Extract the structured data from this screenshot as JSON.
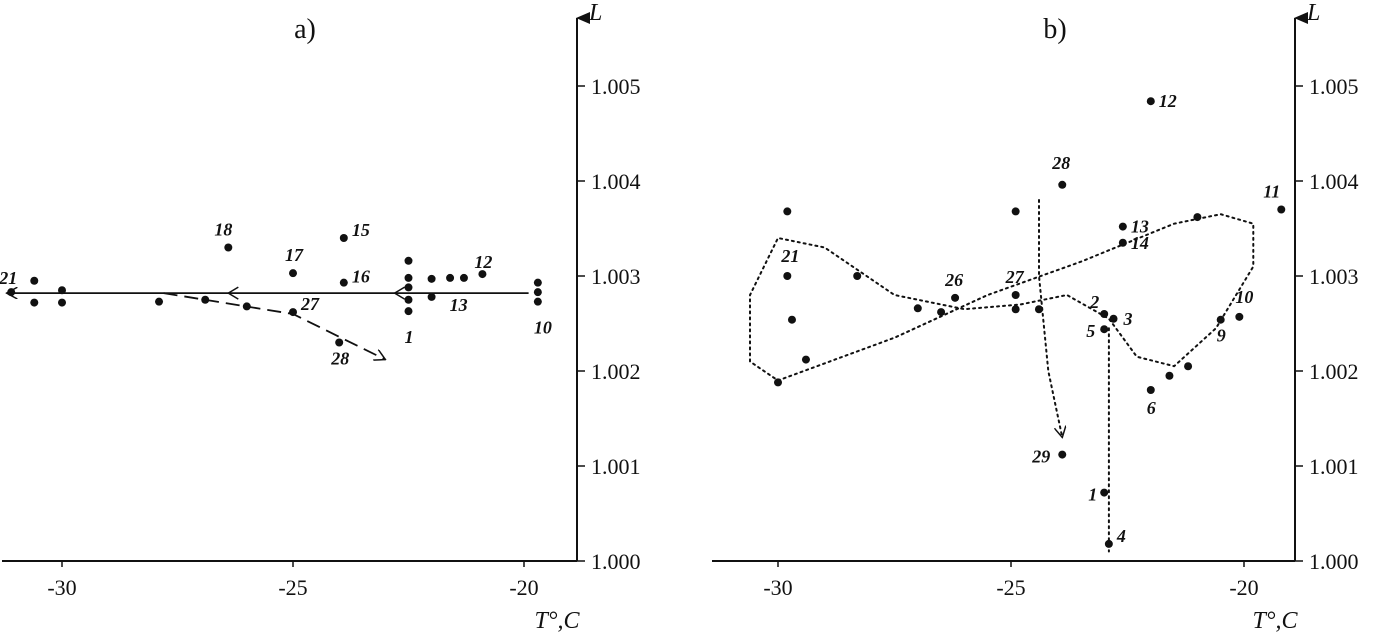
{
  "chart_data": [
    {
      "type": "scatter",
      "panel_label": "a)",
      "xlabel": "T°,C",
      "ylabel": "L",
      "xlim": [
        -31.2,
        -18.8
      ],
      "ylim": [
        1.0,
        1.0058
      ],
      "x_ticks": [
        -30,
        -25,
        -20
      ],
      "x_tick_labels": [
        "-30",
        "-25",
        "-20"
      ],
      "y_ticks": [
        1.0,
        1.001,
        1.002,
        1.003,
        1.004,
        1.005
      ],
      "y_tick_labels": [
        "1.000",
        "1.001",
        "1.002",
        "1.003",
        "1.004",
        "1.005"
      ],
      "points": [
        {
          "x": -31.1,
          "y": 1.00283,
          "label": "21"
        },
        {
          "x": -30.6,
          "y": 1.00295,
          "label": ""
        },
        {
          "x": -30.6,
          "y": 1.00272,
          "label": ""
        },
        {
          "x": -30.0,
          "y": 1.00285,
          "label": ""
        },
        {
          "x": -30.0,
          "y": 1.00272,
          "label": ""
        },
        {
          "x": -27.9,
          "y": 1.00273,
          "label": ""
        },
        {
          "x": -26.9,
          "y": 1.00275,
          "label": ""
        },
        {
          "x": -26.0,
          "y": 1.00268,
          "label": ""
        },
        {
          "x": -26.4,
          "y": 1.0033,
          "label": "18"
        },
        {
          "x": -25.0,
          "y": 1.00303,
          "label": "17"
        },
        {
          "x": -25.0,
          "y": 1.00262,
          "label": "27"
        },
        {
          "x": -23.9,
          "y": 1.0034,
          "label": "15"
        },
        {
          "x": -23.9,
          "y": 1.00293,
          "label": "16"
        },
        {
          "x": -24.0,
          "y": 1.0023,
          "label": "28"
        },
        {
          "x": -22.5,
          "y": 1.00316,
          "label": ""
        },
        {
          "x": -22.5,
          "y": 1.00298,
          "label": ""
        },
        {
          "x": -22.5,
          "y": 1.00288,
          "label": ""
        },
        {
          "x": -22.5,
          "y": 1.00275,
          "label": ""
        },
        {
          "x": -22.5,
          "y": 1.00263,
          "label": "1"
        },
        {
          "x": -22.0,
          "y": 1.00297,
          "label": ""
        },
        {
          "x": -22.0,
          "y": 1.00278,
          "label": "13"
        },
        {
          "x": -21.6,
          "y": 1.00298,
          "label": ""
        },
        {
          "x": -21.3,
          "y": 1.00298,
          "label": ""
        },
        {
          "x": -20.9,
          "y": 1.00302,
          "label": "12"
        },
        {
          "x": -19.7,
          "y": 1.00293,
          "label": ""
        },
        {
          "x": -19.7,
          "y": 1.00283,
          "label": ""
        },
        {
          "x": -19.7,
          "y": 1.00273,
          "label": "10"
        }
      ],
      "trajectories": [
        {
          "style": "solid",
          "path": [
            [
              -19.9,
              1.00282
            ],
            [
              -31.2,
              1.00282
            ]
          ]
        },
        {
          "style": "dashed",
          "path": [
            [
              -27.8,
              1.00282
            ],
            [
              -25.0,
              1.0026
            ],
            [
              -23.0,
              1.00212
            ]
          ]
        }
      ]
    },
    {
      "type": "scatter",
      "panel_label": "b)",
      "xlabel": "T°,C",
      "ylabel": "L",
      "xlim": [
        -31.2,
        -18.8
      ],
      "ylim": [
        1.0,
        1.0058
      ],
      "x_ticks": [
        -30,
        -25,
        -20
      ],
      "x_tick_labels": [
        "-30",
        "-25",
        "-20"
      ],
      "y_ticks": [
        1.0,
        1.001,
        1.002,
        1.003,
        1.004,
        1.005
      ],
      "y_tick_labels": [
        "1.000",
        "1.001",
        "1.002",
        "1.003",
        "1.004",
        "1.005"
      ],
      "points": [
        {
          "x": -22.0,
          "y": 1.00484,
          "label": "12"
        },
        {
          "x": -23.9,
          "y": 1.00396,
          "label": "28"
        },
        {
          "x": -19.2,
          "y": 1.0037,
          "label": "11"
        },
        {
          "x": -22.6,
          "y": 1.00352,
          "label": "13"
        },
        {
          "x": -22.6,
          "y": 1.00335,
          "label": "14"
        },
        {
          "x": -21.0,
          "y": 1.00362,
          "label": ""
        },
        {
          "x": -29.8,
          "y": 1.00368,
          "label": ""
        },
        {
          "x": -24.9,
          "y": 1.00368,
          "label": ""
        },
        {
          "x": -29.8,
          "y": 1.003,
          "label": "21"
        },
        {
          "x": -28.3,
          "y": 1.003,
          "label": ""
        },
        {
          "x": -29.7,
          "y": 1.00254,
          "label": ""
        },
        {
          "x": -29.4,
          "y": 1.00212,
          "label": ""
        },
        {
          "x": -30.0,
          "y": 1.00188,
          "label": ""
        },
        {
          "x": -26.2,
          "y": 1.00277,
          "label": "26"
        },
        {
          "x": -27.0,
          "y": 1.00266,
          "label": ""
        },
        {
          "x": -26.5,
          "y": 1.00262,
          "label": ""
        },
        {
          "x": -24.9,
          "y": 1.0028,
          "label": "27"
        },
        {
          "x": -24.9,
          "y": 1.00265,
          "label": ""
        },
        {
          "x": -24.4,
          "y": 1.00265,
          "label": ""
        },
        {
          "x": -23.0,
          "y": 1.0026,
          "label": "2"
        },
        {
          "x": -22.8,
          "y": 1.00255,
          "label": "3"
        },
        {
          "x": -23.0,
          "y": 1.00244,
          "label": "5"
        },
        {
          "x": -20.5,
          "y": 1.00254,
          "label": "9"
        },
        {
          "x": -20.1,
          "y": 1.00257,
          "label": "10"
        },
        {
          "x": -21.2,
          "y": 1.00205,
          "label": ""
        },
        {
          "x": -21.6,
          "y": 1.00195,
          "label": ""
        },
        {
          "x": -22.0,
          "y": 1.0018,
          "label": "6"
        },
        {
          "x": -23.9,
          "y": 1.00112,
          "label": "29"
        },
        {
          "x": -23.0,
          "y": 1.00072,
          "label": "1"
        },
        {
          "x": -22.9,
          "y": 1.00018,
          "label": "4"
        }
      ],
      "trajectories": [
        {
          "style": "dotted",
          "path": [
            [
              -24.4,
              1.0038
            ],
            [
              -24.4,
              1.003
            ],
            [
              -24.2,
              1.002
            ],
            [
              -23.9,
              1.0013
            ]
          ]
        },
        {
          "style": "dotted",
          "path": [
            [
              -22.9,
              1.00245
            ],
            [
              -22.9,
              1.0001
            ]
          ]
        },
        {
          "style": "dotted",
          "path": [
            [
              -30.0,
              1.0019
            ],
            [
              -27.5,
              1.00235
            ],
            [
              -25.5,
              1.0028
            ],
            [
              -23.5,
              1.00315
            ],
            [
              -21.5,
              1.00355
            ],
            [
              -20.5,
              1.00365
            ],
            [
              -19.8,
              1.00355
            ],
            [
              -19.8,
              1.0031
            ],
            [
              -20.6,
              1.00245
            ],
            [
              -21.5,
              1.00205
            ],
            [
              -22.3,
              1.00215
            ],
            [
              -22.9,
              1.00255
            ],
            [
              -23.8,
              1.0028
            ],
            [
              -24.8,
              1.0027
            ],
            [
              -26.0,
              1.00265
            ],
            [
              -27.5,
              1.0028
            ],
            [
              -29.0,
              1.0033
            ],
            [
              -30.0,
              1.0034
            ],
            [
              -30.6,
              1.0028
            ],
            [
              -30.6,
              1.0021
            ],
            [
              -30.0,
              1.0019
            ]
          ]
        }
      ]
    }
  ]
}
